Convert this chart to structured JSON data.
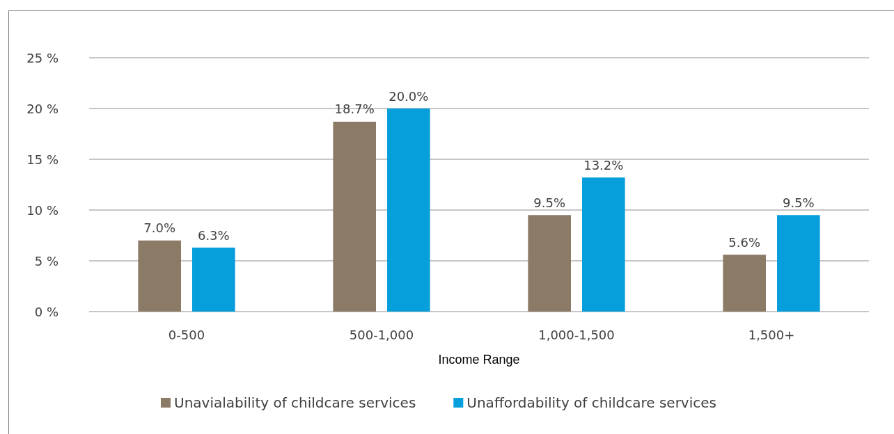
{
  "chart_data": {
    "type": "bar",
    "xlabel": "Income Range",
    "categories": [
      "0-500",
      "500-1,000",
      "1,000-1,500",
      "1,500+"
    ],
    "series": [
      {
        "name": "Unavialability of childcare services",
        "color": "#8b7a66",
        "values": [
          7.0,
          18.7,
          9.5,
          5.6
        ],
        "value_labels": [
          "7.0%",
          "18.7%",
          "9.5%",
          "5.6%"
        ]
      },
      {
        "name": "Unaffordability of childcare services",
        "color": "#069edb",
        "values": [
          6.3,
          20.0,
          13.2,
          9.5
        ],
        "value_labels": [
          "6.3%",
          "20.0%",
          "13.2%",
          "9.5%"
        ]
      }
    ],
    "ylim": [
      0,
      25
    ],
    "yticks": [
      {
        "value": 0,
        "label": "0 %"
      },
      {
        "value": 5,
        "label": "5 %"
      },
      {
        "value": 10,
        "label": "10 %"
      },
      {
        "value": 15,
        "label": "15 %"
      },
      {
        "value": 20,
        "label": "20 %"
      },
      {
        "value": 25,
        "label": "25 %"
      }
    ],
    "grid": "y",
    "legend": "bottom"
  }
}
